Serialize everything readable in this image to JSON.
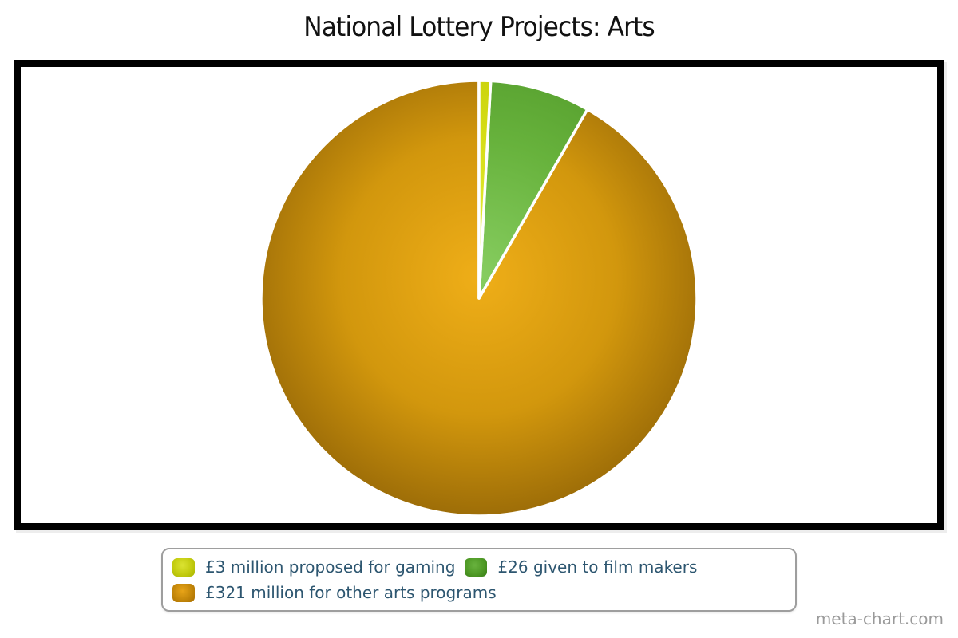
{
  "title": "National Lottery Projects: Arts",
  "watermark": "meta-chart.com",
  "legend": {
    "text_color": "#2d5670",
    "border_color": "#9e9e9e"
  },
  "chart_data": {
    "type": "pie",
    "title": "National Lottery Projects: Arts",
    "total": 350,
    "start_angle_deg": -90,
    "direction": "clockwise",
    "legend_position": "bottom",
    "gap_stroke_color": "#ffffff",
    "slices": [
      {
        "id": "gaming",
        "label": "£3 million proposed for gaming",
        "value": 3,
        "color": "#d6dd17",
        "gradient": [
          "#e9ef3f",
          "#d6dd17",
          "#bfc900"
        ],
        "swatch_gradient": [
          "#dbe332",
          "#c3cc10",
          "#a9b400"
        ]
      },
      {
        "id": "film-makers",
        "label": "£26 given to film makers",
        "value": 26,
        "color": "#67b23c",
        "gradient": [
          "#87cd60",
          "#67b23c",
          "#4d9526"
        ],
        "swatch_gradient": [
          "#68b23e",
          "#4f9a26",
          "#377d14"
        ]
      },
      {
        "id": "other-arts",
        "label": "£321 million for other arts programs",
        "value": 321,
        "color": "#d2970d",
        "gradient": [
          "#efae18",
          "#d2970d",
          "#8a5e06"
        ],
        "swatch_gradient": [
          "#e8a418",
          "#c4870a",
          "#a86e00"
        ]
      }
    ]
  }
}
